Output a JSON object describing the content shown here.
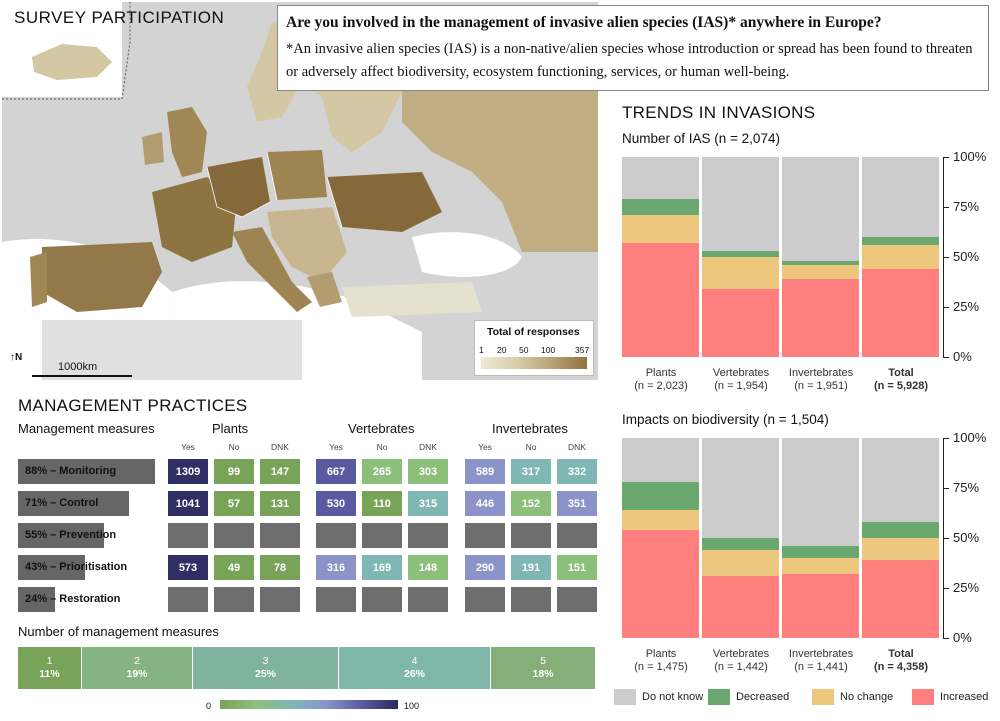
{
  "map": {
    "title": "SURVEY PARTICIPATION",
    "legend_title": "Total of responses",
    "legend_ticks": [
      "1",
      "20",
      "50",
      "100",
      "357"
    ],
    "scale_label": "1000km",
    "north_label": "N"
  },
  "question": {
    "text": "Are you involved in the management of invasive alien species (IAS)* anywhere in Europe?",
    "definition": "*An invasive alien species (IAS) is a non-native/alien species whose introduction or spread has been found to threaten or adversely affect biodiversity, ecosystem functioning, services, or human well-being."
  },
  "management": {
    "title": "MANAGEMENT PRACTICES",
    "header": "Management measures",
    "groups": [
      "Plants",
      "Vertebrates",
      "Invertebrates"
    ],
    "columns": [
      "Yes",
      "No",
      "DNK"
    ],
    "rows": [
      {
        "label": "88% – Monitoring",
        "pct": 88,
        "cells": [
          [
            1309,
            99,
            147
          ],
          [
            667,
            265,
            303
          ],
          [
            589,
            317,
            332
          ]
        ]
      },
      {
        "label": "71% – Control",
        "pct": 71,
        "cells": [
          [
            1041,
            57,
            131
          ],
          [
            530,
            110,
            315
          ],
          [
            446,
            152,
            351
          ]
        ]
      },
      {
        "label": "55% – Prevention",
        "pct": 55,
        "cells": [
          null,
          null,
          null
        ]
      },
      {
        "label": "43% – Prioritisation",
        "pct": 43,
        "cells": [
          [
            573,
            49,
            78
          ],
          [
            316,
            169,
            148
          ],
          [
            290,
            191,
            151
          ]
        ]
      },
      {
        "label": "24% – Restoration",
        "pct": 24,
        "cells": [
          null,
          null,
          null
        ]
      }
    ],
    "num_measures_title": "Number of management measures",
    "num_measures": [
      {
        "n": "1",
        "pct": "11%",
        "value": 11
      },
      {
        "n": "2",
        "pct": "19%",
        "value": 19
      },
      {
        "n": "3",
        "pct": "25%",
        "value": 25
      },
      {
        "n": "4",
        "pct": "26%",
        "value": 26
      },
      {
        "n": "5",
        "pct": "18%",
        "value": 18
      }
    ],
    "colorbar": {
      "min": "0",
      "max": "100"
    }
  },
  "trends": {
    "title": "TRENDS IN INVASIONS"
  },
  "chart_data": [
    {
      "type": "bar",
      "stacked": true,
      "title": "Number of IAS (n = 2,074)",
      "categories": [
        "Plants",
        "Vertebrates",
        "Invertebrates",
        "Total"
      ],
      "category_n": [
        "(n = 2,023)",
        "(n = 1,954)",
        "(n = 1,951)",
        "(n = 5,928)"
      ],
      "yticks": [
        "0%",
        "25%",
        "50%",
        "75%",
        "100%"
      ],
      "ylim": [
        0,
        100
      ],
      "series": [
        {
          "name": "Increased",
          "color": "#ff7f7f",
          "values": [
            57,
            34,
            39,
            44
          ]
        },
        {
          "name": "No change",
          "color": "#eec77f",
          "values": [
            14,
            16,
            7,
            12
          ]
        },
        {
          "name": "Decreased",
          "color": "#6aa870",
          "values": [
            8,
            3,
            2,
            4
          ]
        },
        {
          "name": "Do not know",
          "color": "#cccccc",
          "values": [
            21,
            47,
            52,
            40
          ]
        }
      ]
    },
    {
      "type": "bar",
      "stacked": true,
      "title": "Impacts on biodiversity (n = 1,504)",
      "categories": [
        "Plants",
        "Vertebrates",
        "Invertebrates",
        "Total"
      ],
      "category_n": [
        "(n = 1,475)",
        "(n = 1,442)",
        "(n = 1,441)",
        "(n = 4,358)"
      ],
      "yticks": [
        "0%",
        "25%",
        "50%",
        "75%",
        "100%"
      ],
      "ylim": [
        0,
        100
      ],
      "series": [
        {
          "name": "Increased",
          "color": "#ff7f7f",
          "values": [
            54,
            31,
            32,
            39
          ]
        },
        {
          "name": "No change",
          "color": "#eec77f",
          "values": [
            10,
            13,
            8,
            11
          ]
        },
        {
          "name": "Decreased",
          "color": "#6aa870",
          "values": [
            14,
            6,
            6,
            8
          ]
        },
        {
          "name": "Do not know",
          "color": "#cccccc",
          "values": [
            22,
            50,
            54,
            42
          ]
        }
      ]
    }
  ],
  "legend": [
    {
      "label": "Do not know",
      "color": "#cccccc"
    },
    {
      "label": "Decreased",
      "color": "#6aa870"
    },
    {
      "label": "No change",
      "color": "#eec77f"
    },
    {
      "label": "Increased",
      "color": "#ff7f7f"
    }
  ]
}
